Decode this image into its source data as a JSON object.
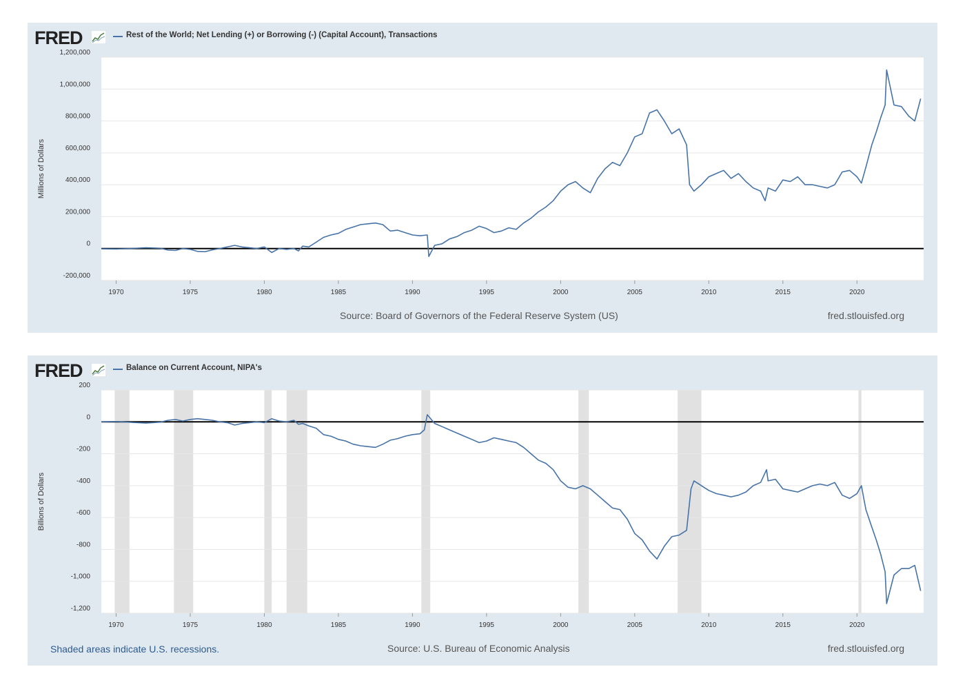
{
  "charts": [
    {
      "logo": "FRED",
      "logo_icon": "fred-graph-icon",
      "series_title": "Rest of the World; Net Lending (+) or Borrowing (-) (Capital Account), Transactions",
      "source": "Source: Board of Governors of the Federal Reserve System (US)",
      "site": "fred.stlouisfed.org",
      "note": ""
    },
    {
      "logo": "FRED",
      "logo_icon": "fred-graph-icon",
      "series_title": "Balance on Current Account, NIPA's",
      "source": "Source: U.S. Bureau of Economic Analysis",
      "site": "fred.stlouisfed.org",
      "note": "Shaded areas indicate U.S. recessions."
    }
  ],
  "colors": {
    "line": "#4572a7",
    "panel_bg": "#e1e9f0",
    "recession": "#e1e1e1",
    "zero_line": "#000000"
  },
  "chart_data": [
    {
      "type": "line",
      "title": "Rest of the World; Net Lending (+) or Borrowing (-) (Capital Account), Transactions",
      "ylabel": "Millions of Dollars",
      "xlabel": "",
      "xlim": [
        1969,
        2024.5
      ],
      "ylim": [
        -200000,
        1200000
      ],
      "xticks": [
        1970,
        1975,
        1980,
        1985,
        1990,
        1995,
        2000,
        2005,
        2010,
        2015,
        2020
      ],
      "yticks": [
        -200000,
        0,
        200000,
        400000,
        600000,
        800000,
        1000000,
        1200000
      ],
      "ytick_labels": [
        "-200,000",
        "0",
        "200,000",
        "400,000",
        "600,000",
        "800,000",
        "1,000,000",
        "1,200,000"
      ],
      "reference_line": 0,
      "recessions": [],
      "series": [
        {
          "name": "Rest of the World; Net Lending (+) or Borrowing (-) (Capital Account), Transactions",
          "points": [
            [
              1969.0,
              -2000
            ],
            [
              1970.0,
              -3000
            ],
            [
              1971.0,
              0
            ],
            [
              1972.0,
              5000
            ],
            [
              1973.0,
              2000
            ],
            [
              1973.5,
              -10000
            ],
            [
              1974.0,
              -12000
            ],
            [
              1974.5,
              0
            ],
            [
              1975.0,
              -5000
            ],
            [
              1975.5,
              -18000
            ],
            [
              1976.0,
              -20000
            ],
            [
              1976.5,
              -8000
            ],
            [
              1977.0,
              0
            ],
            [
              1977.5,
              10000
            ],
            [
              1978.0,
              20000
            ],
            [
              1978.5,
              10000
            ],
            [
              1979.0,
              5000
            ],
            [
              1979.5,
              0
            ],
            [
              1980.0,
              10000
            ],
            [
              1980.5,
              -25000
            ],
            [
              1981.0,
              0
            ],
            [
              1981.5,
              -5000
            ],
            [
              1982.0,
              0
            ],
            [
              1982.3,
              -15000
            ],
            [
              1982.6,
              15000
            ],
            [
              1983.0,
              10000
            ],
            [
              1983.5,
              40000
            ],
            [
              1984.0,
              70000
            ],
            [
              1984.5,
              85000
            ],
            [
              1985.0,
              95000
            ],
            [
              1985.5,
              120000
            ],
            [
              1986.0,
              135000
            ],
            [
              1986.5,
              150000
            ],
            [
              1987.0,
              155000
            ],
            [
              1987.5,
              160000
            ],
            [
              1988.0,
              150000
            ],
            [
              1988.5,
              110000
            ],
            [
              1989.0,
              115000
            ],
            [
              1989.5,
              100000
            ],
            [
              1990.0,
              85000
            ],
            [
              1990.5,
              80000
            ],
            [
              1991.0,
              85000
            ],
            [
              1991.1,
              -50000
            ],
            [
              1991.5,
              20000
            ],
            [
              1992.0,
              30000
            ],
            [
              1992.5,
              60000
            ],
            [
              1993.0,
              75000
            ],
            [
              1993.5,
              100000
            ],
            [
              1994.0,
              115000
            ],
            [
              1994.5,
              140000
            ],
            [
              1995.0,
              125000
            ],
            [
              1995.5,
              100000
            ],
            [
              1996.0,
              110000
            ],
            [
              1996.5,
              130000
            ],
            [
              1997.0,
              120000
            ],
            [
              1997.5,
              160000
            ],
            [
              1998.0,
              190000
            ],
            [
              1998.5,
              230000
            ],
            [
              1999.0,
              260000
            ],
            [
              1999.5,
              300000
            ],
            [
              2000.0,
              360000
            ],
            [
              2000.5,
              400000
            ],
            [
              2001.0,
              420000
            ],
            [
              2001.5,
              380000
            ],
            [
              2002.0,
              350000
            ],
            [
              2002.5,
              440000
            ],
            [
              2003.0,
              500000
            ],
            [
              2003.5,
              540000
            ],
            [
              2004.0,
              520000
            ],
            [
              2004.5,
              600000
            ],
            [
              2005.0,
              700000
            ],
            [
              2005.5,
              720000
            ],
            [
              2006.0,
              850000
            ],
            [
              2006.5,
              870000
            ],
            [
              2007.0,
              800000
            ],
            [
              2007.5,
              720000
            ],
            [
              2008.0,
              750000
            ],
            [
              2008.5,
              650000
            ],
            [
              2008.7,
              400000
            ],
            [
              2009.0,
              360000
            ],
            [
              2009.5,
              400000
            ],
            [
              2010.0,
              450000
            ],
            [
              2010.5,
              470000
            ],
            [
              2011.0,
              490000
            ],
            [
              2011.5,
              440000
            ],
            [
              2012.0,
              470000
            ],
            [
              2012.5,
              420000
            ],
            [
              2013.0,
              380000
            ],
            [
              2013.5,
              360000
            ],
            [
              2013.8,
              300000
            ],
            [
              2014.0,
              380000
            ],
            [
              2014.5,
              360000
            ],
            [
              2015.0,
              430000
            ],
            [
              2015.5,
              420000
            ],
            [
              2016.0,
              450000
            ],
            [
              2016.5,
              400000
            ],
            [
              2017.0,
              400000
            ],
            [
              2017.5,
              390000
            ],
            [
              2018.0,
              380000
            ],
            [
              2018.5,
              400000
            ],
            [
              2019.0,
              480000
            ],
            [
              2019.5,
              490000
            ],
            [
              2020.0,
              450000
            ],
            [
              2020.3,
              410000
            ],
            [
              2020.6,
              510000
            ],
            [
              2021.0,
              650000
            ],
            [
              2021.3,
              730000
            ],
            [
              2021.6,
              820000
            ],
            [
              2021.9,
              900000
            ],
            [
              2022.0,
              1120000
            ],
            [
              2022.5,
              900000
            ],
            [
              2023.0,
              890000
            ],
            [
              2023.5,
              830000
            ],
            [
              2023.9,
              800000
            ],
            [
              2024.3,
              940000
            ]
          ]
        }
      ]
    },
    {
      "type": "line",
      "title": "Balance on Current Account, NIPA's",
      "ylabel": "Billions of Dollars",
      "xlabel": "",
      "xlim": [
        1969,
        2024.5
      ],
      "ylim": [
        -1200,
        200
      ],
      "xticks": [
        1970,
        1975,
        1980,
        1985,
        1990,
        1995,
        2000,
        2005,
        2010,
        2015,
        2020
      ],
      "yticks": [
        -1200,
        -1000,
        -800,
        -600,
        -400,
        -200,
        0,
        200
      ],
      "ytick_labels": [
        "-1,200",
        "-1,000",
        "-800",
        "-600",
        "-400",
        "-200",
        "0",
        "200"
      ],
      "reference_line": 0,
      "recessions": [
        [
          1969.9,
          1970.9
        ],
        [
          1973.9,
          1975.2
        ],
        [
          1980.0,
          1980.5
        ],
        [
          1981.5,
          1982.9
        ],
        [
          1990.6,
          1991.2
        ],
        [
          2001.2,
          2001.9
        ],
        [
          2007.9,
          2009.5
        ],
        [
          2020.1,
          2020.3
        ]
      ],
      "series": [
        {
          "name": "Balance on Current Account, NIPA's",
          "points": [
            [
              1969.0,
              0
            ],
            [
              1970.0,
              2
            ],
            [
              1971.0,
              -3
            ],
            [
              1972.0,
              -8
            ],
            [
              1973.0,
              -2
            ],
            [
              1973.5,
              10
            ],
            [
              1974.0,
              15
            ],
            [
              1974.5,
              5
            ],
            [
              1975.0,
              15
            ],
            [
              1975.5,
              20
            ],
            [
              1976.0,
              15
            ],
            [
              1976.5,
              10
            ],
            [
              1977.0,
              0
            ],
            [
              1977.5,
              -5
            ],
            [
              1978.0,
              -20
            ],
            [
              1978.5,
              -10
            ],
            [
              1979.0,
              -5
            ],
            [
              1979.5,
              0
            ],
            [
              1980.0,
              -5
            ],
            [
              1980.5,
              20
            ],
            [
              1981.0,
              5
            ],
            [
              1981.5,
              0
            ],
            [
              1982.0,
              10
            ],
            [
              1982.3,
              -15
            ],
            [
              1982.6,
              -10
            ],
            [
              1983.0,
              -25
            ],
            [
              1983.5,
              -40
            ],
            [
              1984.0,
              -80
            ],
            [
              1984.5,
              -90
            ],
            [
              1985.0,
              -110
            ],
            [
              1985.5,
              -120
            ],
            [
              1986.0,
              -140
            ],
            [
              1986.5,
              -150
            ],
            [
              1987.0,
              -155
            ],
            [
              1987.5,
              -160
            ],
            [
              1988.0,
              -140
            ],
            [
              1988.5,
              -115
            ],
            [
              1989.0,
              -105
            ],
            [
              1989.5,
              -90
            ],
            [
              1990.0,
              -80
            ],
            [
              1990.5,
              -75
            ],
            [
              1990.8,
              -50
            ],
            [
              1991.0,
              45
            ],
            [
              1991.5,
              -10
            ],
            [
              1992.0,
              -30
            ],
            [
              1992.5,
              -50
            ],
            [
              1993.0,
              -70
            ],
            [
              1993.5,
              -90
            ],
            [
              1994.0,
              -110
            ],
            [
              1994.5,
              -130
            ],
            [
              1995.0,
              -120
            ],
            [
              1995.5,
              -100
            ],
            [
              1996.0,
              -110
            ],
            [
              1996.5,
              -120
            ],
            [
              1997.0,
              -130
            ],
            [
              1997.5,
              -160
            ],
            [
              1998.0,
              -200
            ],
            [
              1998.5,
              -240
            ],
            [
              1999.0,
              -260
            ],
            [
              1999.5,
              -300
            ],
            [
              2000.0,
              -370
            ],
            [
              2000.5,
              -410
            ],
            [
              2001.0,
              -420
            ],
            [
              2001.5,
              -400
            ],
            [
              2002.0,
              -420
            ],
            [
              2002.5,
              -460
            ],
            [
              2003.0,
              -500
            ],
            [
              2003.5,
              -540
            ],
            [
              2004.0,
              -550
            ],
            [
              2004.5,
              -610
            ],
            [
              2005.0,
              -700
            ],
            [
              2005.5,
              -740
            ],
            [
              2006.0,
              -810
            ],
            [
              2006.5,
              -860
            ],
            [
              2007.0,
              -780
            ],
            [
              2007.5,
              -720
            ],
            [
              2008.0,
              -710
            ],
            [
              2008.5,
              -680
            ],
            [
              2008.8,
              -420
            ],
            [
              2009.0,
              -370
            ],
            [
              2009.5,
              -400
            ],
            [
              2010.0,
              -430
            ],
            [
              2010.5,
              -450
            ],
            [
              2011.0,
              -460
            ],
            [
              2011.5,
              -470
            ],
            [
              2012.0,
              -460
            ],
            [
              2012.5,
              -440
            ],
            [
              2013.0,
              -400
            ],
            [
              2013.5,
              -380
            ],
            [
              2013.9,
              -300
            ],
            [
              2014.0,
              -370
            ],
            [
              2014.5,
              -360
            ],
            [
              2015.0,
              -420
            ],
            [
              2015.5,
              -430
            ],
            [
              2016.0,
              -440
            ],
            [
              2016.5,
              -420
            ],
            [
              2017.0,
              -400
            ],
            [
              2017.5,
              -390
            ],
            [
              2018.0,
              -400
            ],
            [
              2018.5,
              -380
            ],
            [
              2019.0,
              -460
            ],
            [
              2019.5,
              -480
            ],
            [
              2020.0,
              -450
            ],
            [
              2020.3,
              -400
            ],
            [
              2020.6,
              -550
            ],
            [
              2021.0,
              -660
            ],
            [
              2021.3,
              -740
            ],
            [
              2021.6,
              -830
            ],
            [
              2021.9,
              -940
            ],
            [
              2022.0,
              -1140
            ],
            [
              2022.5,
              -960
            ],
            [
              2023.0,
              -920
            ],
            [
              2023.5,
              -920
            ],
            [
              2023.9,
              -900
            ],
            [
              2024.3,
              -1060
            ]
          ]
        }
      ]
    }
  ]
}
